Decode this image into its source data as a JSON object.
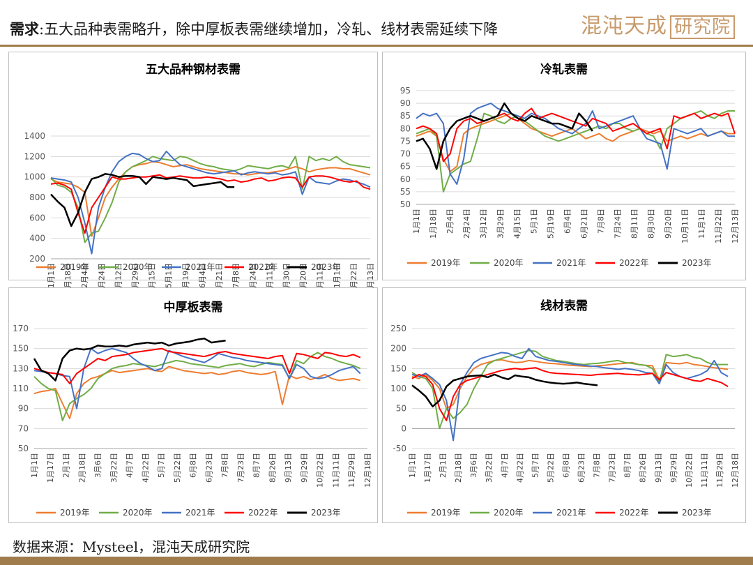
{
  "header": {
    "label": "需求",
    "text": ":五大品种表需略升，除中厚板表需继续增加，冷轧、线材表需延续下降",
    "brand": "混沌天成",
    "brand_box": "研究院"
  },
  "footer": {
    "source": "数据来源：Mysteel，混沌天成研究院"
  },
  "colors": {
    "2019年": "#ed7d31",
    "2020年": "#70ad47",
    "2021年": "#4472c4",
    "2022年": "#ff0000",
    "2023年": "#000000",
    "accent": "#a07c4c"
  },
  "chart_data": [
    {
      "id": "c1",
      "type": "line",
      "title": "五大品种钢材表需",
      "ylim": [
        200,
        1400
      ],
      "yticks": [
        200,
        400,
        600,
        800,
        1000,
        1200,
        1400
      ],
      "x_tick_labels": [
        "1月1日",
        "1月18日",
        "2月4日",
        "2月24日",
        "3月12日",
        "3月29日",
        "4月15日",
        "5月1日",
        "5月19日",
        "6月4日",
        "6月21日",
        "7月8日",
        "7月24日",
        "8月11日",
        "8月30日",
        "9月20日",
        "10月11日",
        "11月1日",
        "11月22日",
        "12月13日"
      ],
      "grid": true,
      "legend": "bottom",
      "series": [
        {
          "name": "2019年",
          "values": [
            980,
            950,
            940,
            930,
            900,
            850,
            420,
            600,
            800,
            900,
            980,
            1050,
            1100,
            1120,
            1130,
            1150,
            1140,
            1120,
            1100,
            1110,
            1120,
            1100,
            1080,
            1070,
            1060,
            1050,
            1040,
            1030,
            1030,
            1020,
            1030,
            1040,
            1040,
            1050,
            1060,
            1080,
            1100,
            1080,
            1050,
            1070,
            1080,
            1090,
            1090,
            1080,
            1080,
            1060,
            1040,
            1020
          ]
        },
        {
          "name": "2020年",
          "values": [
            990,
            920,
            900,
            850,
            700,
            360,
            450,
            470,
            600,
            750,
            950,
            1050,
            1100,
            1130,
            1160,
            1200,
            1180,
            1170,
            1160,
            1200,
            1190,
            1160,
            1130,
            1110,
            1100,
            1080,
            1070,
            1060,
            1080,
            1110,
            1100,
            1090,
            1080,
            1100,
            1110,
            1090,
            1200,
            880,
            1200,
            1160,
            1180,
            1160,
            1200,
            1150,
            1120,
            1110,
            1100,
            1090
          ]
        },
        {
          "name": "2021年",
          "values": [
            990,
            980,
            970,
            950,
            800,
            550,
            250,
            700,
            900,
            1050,
            1150,
            1200,
            1230,
            1220,
            1180,
            1150,
            1160,
            1250,
            1180,
            1120,
            1100,
            1080,
            1060,
            1040,
            1030,
            1040,
            1050,
            1060,
            1020,
            1040,
            1050,
            1040,
            1030,
            1040,
            1020,
            1030,
            1050,
            830,
            1000,
            950,
            940,
            930,
            960,
            980,
            970,
            950,
            930,
            900
          ]
        },
        {
          "name": "2022年",
          "values": [
            930,
            940,
            920,
            880,
            650,
            450,
            700,
            800,
            900,
            1000,
            980,
            980,
            990,
            1000,
            1000,
            1010,
            1020,
            990,
            1000,
            1010,
            1000,
            990,
            990,
            1000,
            990,
            980,
            960,
            970,
            950,
            960,
            980,
            990,
            960,
            970,
            990,
            1000,
            990,
            900,
            1000,
            1010,
            1010,
            1000,
            980,
            960,
            950,
            960,
            900,
            880
          ]
        },
        {
          "name": "2023年",
          "values": [
            830,
            760,
            700,
            520,
            650,
            850,
            980,
            1000,
            1030,
            1020,
            1000,
            1010,
            1010,
            1000,
            930,
            1000,
            990,
            980,
            990,
            980,
            970,
            910,
            920,
            930,
            940,
            950,
            900,
            900
          ]
        }
      ]
    },
    {
      "id": "c2",
      "type": "line",
      "title": "冷轧表需",
      "ylim": [
        50,
        95
      ],
      "yticks": [
        50,
        55,
        60,
        65,
        70,
        75,
        80,
        85,
        90,
        95
      ],
      "x_tick_labels": [
        "1月1日",
        "1月18日",
        "2月4日",
        "2月24日",
        "3月12日",
        "3月29日",
        "4月15日",
        "5月1日",
        "5月19日",
        "6月4日",
        "6月21日",
        "7月8日",
        "7月24日",
        "8月11日",
        "8月30日",
        "9月20日",
        "10月11日",
        "11月1日",
        "11月22日",
        "12月13日"
      ],
      "grid": true,
      "legend": "bottom",
      "series": [
        {
          "name": "2019年",
          "values": [
            77,
            78,
            79,
            77,
            68,
            63,
            65,
            78,
            80,
            81,
            82,
            83,
            84,
            85,
            86,
            84,
            82,
            80,
            79,
            78,
            77,
            78,
            79,
            80,
            78,
            76,
            77,
            78,
            76,
            75,
            77,
            78,
            79,
            80,
            79,
            78,
            79,
            75,
            76,
            77,
            76,
            77,
            78,
            77,
            78,
            79,
            78,
            78
          ]
        },
        {
          "name": "2020年",
          "values": [
            78,
            79,
            80,
            77,
            55,
            62,
            64,
            66,
            67,
            76,
            86,
            85,
            83,
            82,
            84,
            85,
            83,
            81,
            79,
            77,
            76,
            75,
            76,
            77,
            78,
            79,
            80,
            81,
            80,
            82,
            82,
            80,
            79,
            80,
            78,
            77,
            72,
            80,
            82,
            84,
            85,
            86,
            87,
            85,
            84,
            86,
            87,
            87
          ]
        },
        {
          "name": "2021年",
          "values": [
            84,
            86,
            85,
            86,
            82,
            62,
            58,
            68,
            86,
            88,
            89,
            90,
            88,
            87,
            86,
            85,
            84,
            86,
            85,
            84,
            82,
            80,
            79,
            78,
            80,
            82,
            87,
            80,
            81,
            82,
            83,
            84,
            85,
            80,
            76,
            75,
            74,
            64,
            80,
            79,
            78,
            79,
            80,
            77,
            78,
            79,
            77,
            77
          ]
        },
        {
          "name": "2022年",
          "values": [
            80,
            81,
            80,
            78,
            67,
            70,
            80,
            83,
            84,
            82,
            83,
            84,
            85,
            86,
            84,
            83,
            86,
            88,
            84,
            85,
            86,
            85,
            84,
            83,
            82,
            81,
            84,
            83,
            82,
            79,
            80,
            81,
            82,
            80,
            78,
            79,
            80,
            72,
            85,
            84,
            85,
            86,
            84,
            85,
            86,
            85,
            86,
            78
          ]
        },
        {
          "name": "2023年",
          "values": [
            75,
            76,
            72,
            64,
            75,
            80,
            83,
            84,
            85,
            84,
            83,
            84,
            85,
            90,
            86,
            84,
            83,
            85,
            84,
            83,
            82,
            82,
            81,
            80,
            86,
            83,
            79
          ]
        }
      ]
    },
    {
      "id": "c3",
      "type": "line",
      "title": "中厚板表需",
      "ylim": [
        50,
        170
      ],
      "yticks": [
        50,
        70,
        90,
        110,
        130,
        150,
        170
      ],
      "x_tick_labels": [
        "1月1日",
        "1月17日",
        "2月1日",
        "2月18日",
        "3月6日",
        "3月22日",
        "4月7日",
        "4月22日",
        "5月7日",
        "5月22日",
        "6月8日",
        "6月23日",
        "7月8日",
        "7月23日",
        "8月7日",
        "8月26日",
        "9月13日",
        "9月29日",
        "10月22日",
        "11月11日",
        "11月29日",
        "12月18日"
      ],
      "grid": true,
      "legend": "bottom",
      "series": [
        {
          "name": "2019年",
          "values": [
            105,
            107,
            108,
            110,
            95,
            80,
            105,
            115,
            120,
            122,
            125,
            128,
            126,
            127,
            128,
            129,
            130,
            128,
            127,
            132,
            130,
            128,
            127,
            126,
            125,
            126,
            124,
            125,
            127,
            128,
            126,
            125,
            124,
            125,
            127,
            94,
            123,
            120,
            122,
            119,
            121,
            124,
            120,
            118,
            119,
            120,
            118
          ]
        },
        {
          "name": "2020年",
          "values": [
            122,
            115,
            110,
            108,
            78,
            95,
            100,
            104,
            110,
            120,
            125,
            130,
            132,
            133,
            135,
            134,
            133,
            132,
            134,
            136,
            138,
            137,
            135,
            134,
            133,
            132,
            131,
            133,
            134,
            135,
            133,
            132,
            134,
            136,
            135,
            134,
            120,
            138,
            135,
            142,
            146,
            142,
            140,
            137,
            135,
            133,
            130
          ]
        },
        {
          "name": "2021年",
          "values": [
            128,
            127,
            126,
            125,
            123,
            122,
            90,
            130,
            150,
            145,
            148,
            150,
            148,
            146,
            140,
            135,
            132,
            128,
            130,
            148,
            145,
            142,
            140,
            138,
            136,
            140,
            145,
            143,
            141,
            140,
            138,
            137,
            136,
            135,
            134,
            133,
            120,
            134,
            130,
            122,
            120,
            121,
            124,
            128,
            130,
            132,
            125
          ]
        },
        {
          "name": "2022年",
          "values": [
            130,
            128,
            126,
            125,
            124,
            115,
            125,
            130,
            135,
            140,
            138,
            142,
            143,
            144,
            146,
            147,
            148,
            149,
            150,
            147,
            146,
            145,
            144,
            143,
            142,
            144,
            146,
            147,
            145,
            144,
            143,
            142,
            141,
            140,
            142,
            143,
            125,
            145,
            144,
            142,
            140,
            146,
            145,
            143,
            142,
            144,
            141
          ]
        },
        {
          "name": "2023年",
          "values": [
            140,
            128,
            125,
            118,
            140,
            148,
            150,
            149,
            150,
            153,
            152,
            152,
            153,
            152,
            154,
            155,
            156,
            155,
            156,
            153,
            155,
            156,
            157,
            159,
            160,
            156,
            157,
            158
          ]
        }
      ]
    },
    {
      "id": "c4",
      "type": "line",
      "title": "线材表需",
      "ylim": [
        -50,
        250
      ],
      "yticks": [
        -50,
        0,
        50,
        100,
        150,
        200,
        250
      ],
      "x_tick_labels": [
        "1月1日",
        "1月17日",
        "2月1日",
        "2月18日",
        "3月6日",
        "3月22日",
        "4月7日",
        "4月22日",
        "5月7日",
        "5月22日",
        "6月8日",
        "6月23日",
        "7月8日",
        "7月23日",
        "8月7日",
        "8月26日",
        "9月13日",
        "9月29日",
        "10月22日",
        "11月11日",
        "11月29日",
        "12月18日"
      ],
      "grid": true,
      "legend": "bottom",
      "series": [
        {
          "name": "2019年",
          "values": [
            130,
            125,
            135,
            120,
            100,
            50,
            60,
            100,
            130,
            150,
            160,
            165,
            170,
            172,
            168,
            165,
            166,
            170,
            168,
            165,
            163,
            162,
            160,
            158,
            157,
            156,
            155,
            157,
            158,
            160,
            162,
            163,
            165,
            160,
            158,
            157,
            122,
            165,
            163,
            162,
            165,
            160,
            158,
            155,
            152,
            150,
            148
          ]
        },
        {
          "name": "2020年",
          "values": [
            140,
            130,
            125,
            100,
            0,
            50,
            25,
            40,
            60,
            100,
            130,
            160,
            170,
            175,
            180,
            185,
            190,
            195,
            193,
            180,
            175,
            170,
            168,
            165,
            162,
            160,
            162,
            163,
            165,
            168,
            170,
            165,
            163,
            160,
            158,
            150,
            115,
            185,
            180,
            182,
            185,
            178,
            175,
            165,
            160,
            160,
            160
          ]
        },
        {
          "name": "2021年",
          "values": [
            135,
            130,
            138,
            125,
            110,
            70,
            -30,
            110,
            140,
            165,
            175,
            180,
            185,
            190,
            188,
            180,
            175,
            200,
            180,
            175,
            170,
            168,
            165,
            162,
            160,
            158,
            156,
            155,
            152,
            150,
            148,
            150,
            148,
            145,
            140,
            138,
            112,
            160,
            140,
            130,
            125,
            130,
            135,
            145,
            170,
            140,
            130
          ]
        },
        {
          "name": "2022年",
          "values": [
            125,
            135,
            130,
            110,
            50,
            20,
            80,
            110,
            120,
            125,
            130,
            135,
            140,
            145,
            148,
            150,
            148,
            150,
            152,
            145,
            140,
            138,
            137,
            136,
            135,
            134,
            133,
            135,
            136,
            137,
            138,
            136,
            135,
            134,
            136,
            138,
            122,
            140,
            135,
            130,
            125,
            120,
            118,
            125,
            120,
            115,
            105
          ]
        },
        {
          "name": "2023年",
          "values": [
            108,
            95,
            80,
            55,
            70,
            105,
            120,
            125,
            130,
            132,
            133,
            128,
            135,
            128,
            123,
            133,
            130,
            128,
            122,
            118,
            115,
            113,
            112,
            113,
            115,
            112,
            110,
            108
          ]
        }
      ]
    }
  ]
}
